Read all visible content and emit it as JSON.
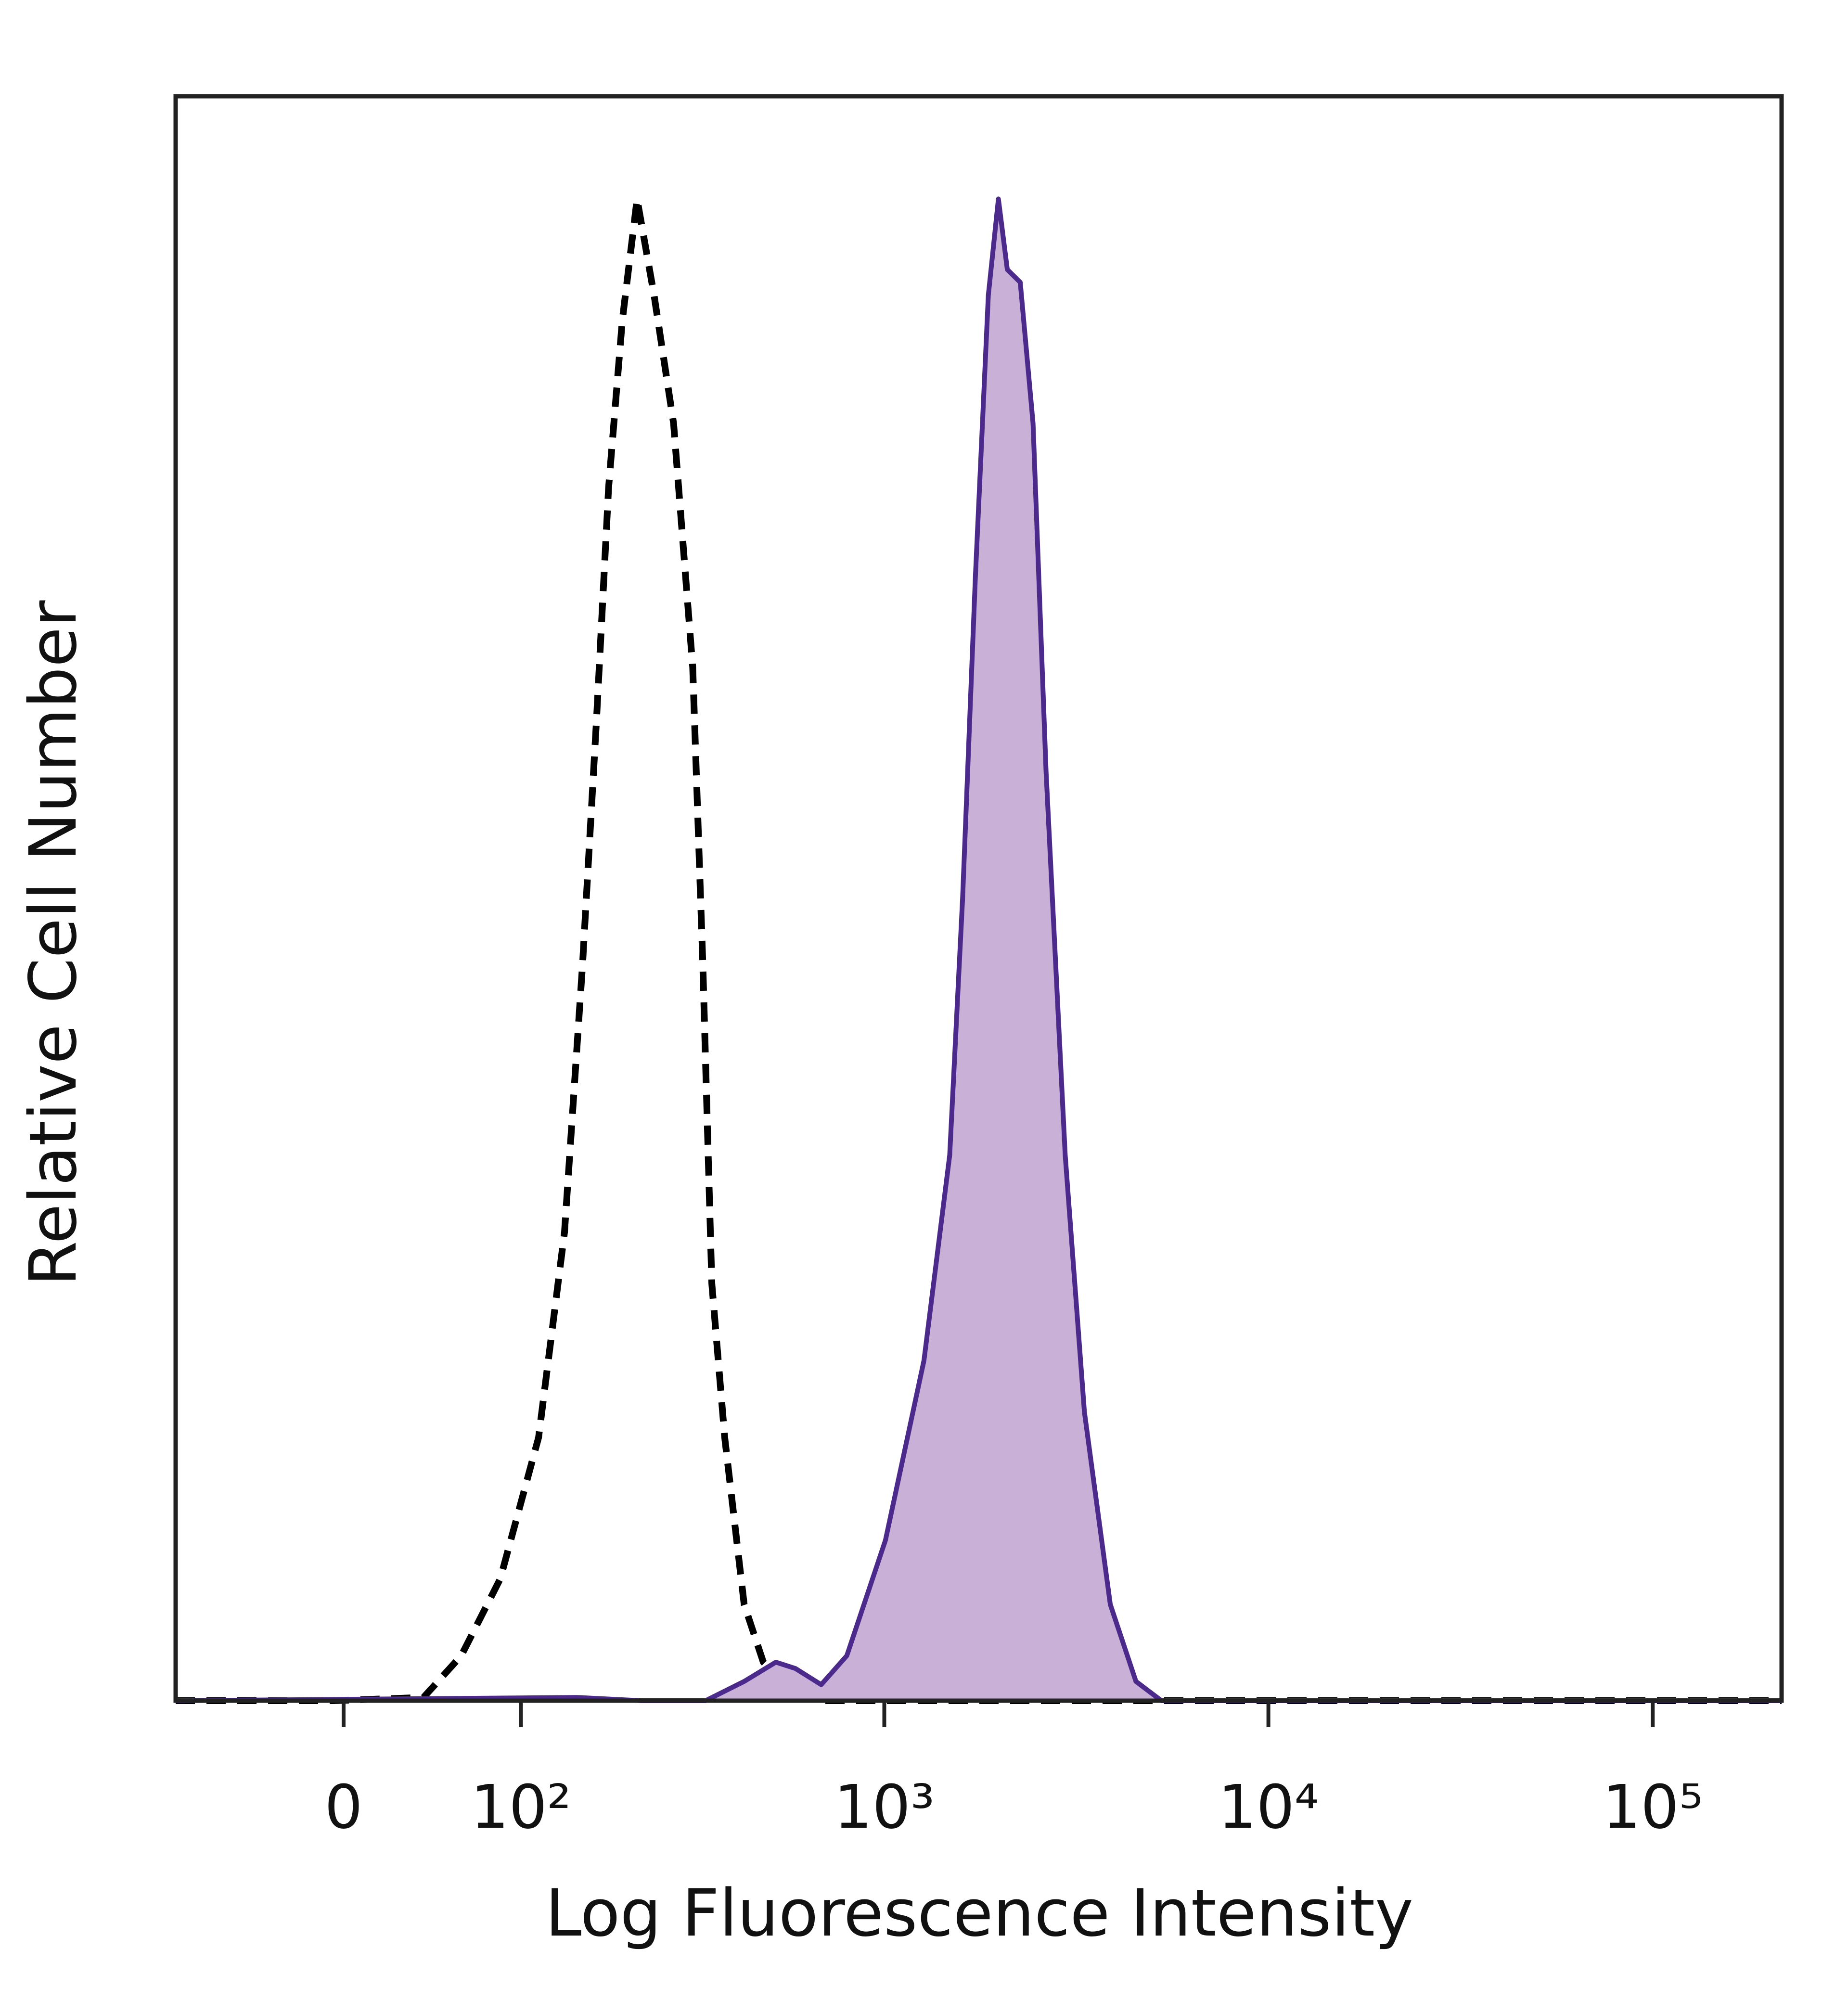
{
  "chart_data": {
    "type": "histogram-overlay",
    "x_label": "Log Fluorescence Intensity",
    "y_label": "Relative Cell Number",
    "xscale": "asinh",
    "xlim": [
      -93,
      216400
    ],
    "ylim": [
      0,
      100
    ],
    "xticks": [
      0,
      {
        "value": 100,
        "label": "10²"
      },
      {
        "value": 1000,
        "label": "10³"
      },
      {
        "value": 10000,
        "label": "10⁴"
      },
      {
        "value": 100000,
        "label": "10⁵"
      }
    ],
    "series": [
      {
        "color": "#000000",
        "dashed": true,
        "x": [
          -93,
          -5,
          39,
          60,
          85,
          114,
          137,
          155,
          170,
          184,
          201,
          221,
          246,
          278,
          313,
          333,
          352,
          381,
          429,
          482,
          542,
          684,
          216400
        ],
        "values": [
          0,
          0,
          0.2,
          2.8,
          7.6,
          16.4,
          29.2,
          46,
          61.2,
          75.6,
          86,
          93.6,
          87.6,
          79.6,
          64.4,
          46,
          26,
          16.4,
          6,
          2.4,
          1.2,
          0,
          0
        ]
      },
      {
        "color": "#4b2a8c",
        "fill": "#c9b0d6",
        "dashed": false,
        "x": [
          -93,
          149,
          227,
          339,
          429,
          520,
          586,
          684,
          798,
          1007,
          1269,
          1481,
          1600,
          1727,
          1867,
          1983,
          2092,
          2261,
          2441,
          2638,
          2960,
          3321,
          3878,
          4522,
          5267,
          216400
        ],
        "values": [
          0,
          0.2,
          0,
          0,
          1.2,
          2.4,
          2,
          1,
          2.8,
          10,
          21.2,
          34,
          50,
          70,
          87.6,
          93.6,
          89.2,
          88.4,
          79.6,
          58,
          34,
          18,
          6,
          1.2,
          0,
          0
        ]
      }
    ]
  }
}
